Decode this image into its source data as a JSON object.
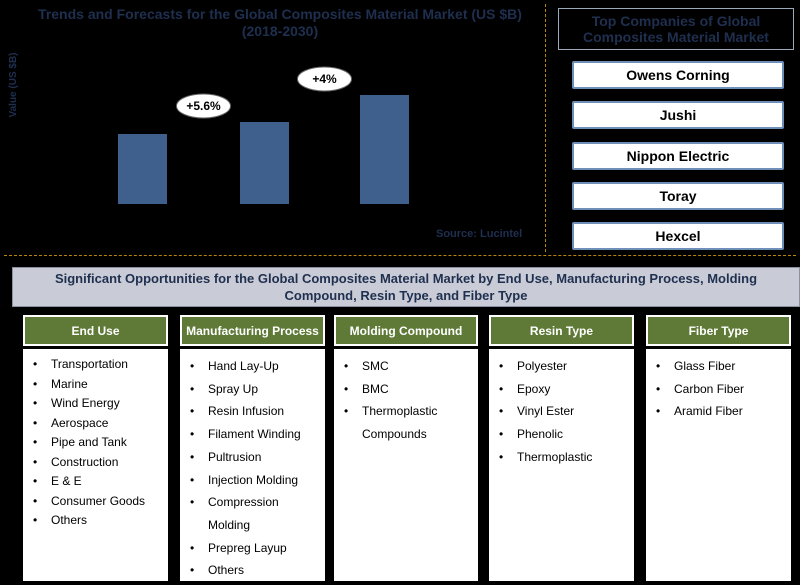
{
  "chart_data": {
    "type": "bar",
    "title": "Trends and Forecasts for the Global Composites Material Market (US $B) (2018-2030)",
    "ylabel": "Value (US $B)",
    "xlabel": "",
    "categories": [
      "",
      "",
      ""
    ],
    "values": [
      70,
      82,
      109
    ],
    "ylim": [
      0,
      140
    ],
    "annotations": [
      "+5.6%",
      "+4%"
    ],
    "bar_color": "#3f5f8c",
    "source": "Source: Lucintel"
  },
  "companies": {
    "title": "Top Companies of Global Composites Material Market",
    "items": [
      "Owens Corning",
      "Jushi",
      "Nippon Electric",
      "Toray",
      "Hexcel"
    ]
  },
  "opportunities": {
    "title": "Significant Opportunities for the Global Composites Material Market by End Use, Manufacturing Process, Molding Compound, Resin Type, and Fiber Type",
    "columns": [
      {
        "header": "End Use",
        "items": [
          "Transportation",
          "Marine",
          "Wind Energy",
          "Aerospace",
          "Pipe and Tank",
          "Construction",
          "E & E",
          "Consumer Goods",
          "Others"
        ]
      },
      {
        "header": "Manufacturing Process",
        "items": [
          "Hand Lay-Up",
          "Spray Up",
          "Resin Infusion",
          "Filament Winding",
          "Pultrusion",
          "Injection Molding",
          "Compression Molding",
          "Prepreg Layup",
          "Others"
        ]
      },
      {
        "header": "Molding Compound",
        "items": [
          "SMC",
          "BMC",
          "Thermoplastic Compounds"
        ]
      },
      {
        "header": "Resin Type",
        "items": [
          "Polyester",
          "Epoxy",
          "Vinyl Ester",
          "Phenolic",
          "Thermoplastic"
        ]
      },
      {
        "header": "Fiber Type",
        "items": [
          "Glass Fiber",
          "Carbon Fiber",
          "Aramid Fiber"
        ]
      }
    ],
    "header_color": "#5f7a36"
  }
}
